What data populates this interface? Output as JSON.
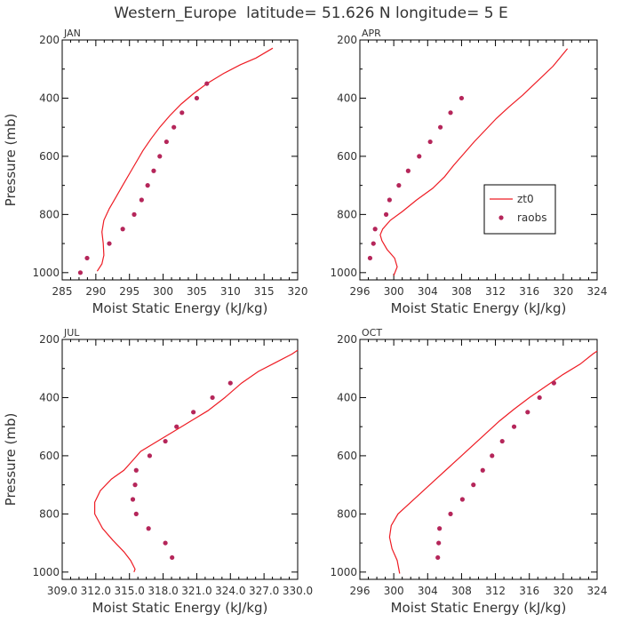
{
  "figure_title": "Western_Europe  latitude= 51.626 N longitude= 5 E",
  "colors": {
    "model": "#ee1c24",
    "obs": "#b5265a",
    "axis": "#000000",
    "text": "#333333"
  },
  "chart_data": [
    {
      "type": "line",
      "title": "JAN",
      "xlabel": "Moist Static Energy (kJ/kg)",
      "ylabel": "Pressure (mb)",
      "xlim": [
        285,
        320
      ],
      "ylim": [
        1025,
        200
      ],
      "x_ticks": [
        285,
        290,
        295,
        300,
        305,
        310,
        315,
        320
      ],
      "x_tick_labels": [
        "285",
        "290",
        "295",
        "300",
        "305",
        "310",
        "315",
        "320"
      ],
      "y_ticks": [
        200,
        400,
        600,
        800,
        1000
      ],
      "y_tick_labels": [
        "200",
        "400",
        "600",
        "800",
        "1000"
      ],
      "legend": null,
      "series": [
        {
          "name": "zt0",
          "style": "line",
          "points": [
            [
              290.2,
              995
            ],
            [
              290.9,
              970
            ],
            [
              291.2,
              940
            ],
            [
              291.1,
              900
            ],
            [
              290.9,
              860
            ],
            [
              291.2,
              820
            ],
            [
              292,
              780
            ],
            [
              293,
              740
            ],
            [
              294,
              700
            ],
            [
              295,
              660
            ],
            [
              296,
              620
            ],
            [
              297,
              580
            ],
            [
              298.2,
              540
            ],
            [
              299.5,
              500
            ],
            [
              301,
              460
            ],
            [
              302.7,
              420
            ],
            [
              304.5,
              385
            ],
            [
              306.5,
              350
            ],
            [
              309,
              315
            ],
            [
              311.5,
              285
            ],
            [
              313.8,
              262
            ],
            [
              316.3,
              228
            ]
          ]
        },
        {
          "name": "raobs",
          "style": "points",
          "points": [
            [
              287.7,
              1000
            ],
            [
              288.7,
              950
            ],
            [
              292,
              900
            ],
            [
              294,
              850
            ],
            [
              295.7,
              800
            ],
            [
              296.8,
              750
            ],
            [
              297.7,
              700
            ],
            [
              298.6,
              650
            ],
            [
              299.5,
              600
            ],
            [
              300.5,
              550
            ],
            [
              301.6,
              500
            ],
            [
              302.8,
              450
            ],
            [
              305,
              400
            ],
            [
              306.5,
              350
            ]
          ]
        }
      ]
    },
    {
      "type": "line",
      "title": "APR",
      "xlabel": "Moist Static Energy (kJ/kg)",
      "ylabel": "",
      "xlim": [
        296,
        324
      ],
      "ylim": [
        1025,
        200
      ],
      "x_ticks": [
        296,
        300,
        304,
        308,
        312,
        316,
        320,
        324
      ],
      "x_tick_labels": [
        "296",
        "300",
        "304",
        "308",
        "312",
        "316",
        "320",
        "324"
      ],
      "y_ticks": [
        200,
        400,
        600,
        800,
        1000
      ],
      "y_tick_labels": [
        "200",
        "400",
        "600",
        "800",
        "1000"
      ],
      "legend": {
        "location": "center-right",
        "entries": [
          "zt0",
          "raobs"
        ]
      },
      "series": [
        {
          "name": "zt0",
          "style": "line",
          "points": [
            [
              300,
              1010
            ],
            [
              300.4,
              980
            ],
            [
              300.1,
              950
            ],
            [
              299.2,
              920
            ],
            [
              298.6,
              890
            ],
            [
              298.4,
              870
            ],
            [
              298.7,
              850
            ],
            [
              299.6,
              820
            ],
            [
              301,
              790
            ],
            [
              302.7,
              750
            ],
            [
              304.6,
              710
            ],
            [
              306,
              670
            ],
            [
              307.1,
              630
            ],
            [
              308.3,
              590
            ],
            [
              309.5,
              550
            ],
            [
              310.8,
              510
            ],
            [
              312.1,
              470
            ],
            [
              313.6,
              430
            ],
            [
              315.2,
              390
            ],
            [
              317,
              340
            ],
            [
              318.8,
              290
            ],
            [
              320.5,
              230
            ]
          ]
        },
        {
          "name": "raobs",
          "style": "points",
          "points": [
            [
              297.2,
              950
            ],
            [
              297.6,
              900
            ],
            [
              297.8,
              850
            ],
            [
              299.1,
              800
            ],
            [
              299.5,
              750
            ],
            [
              300.6,
              700
            ],
            [
              301.7,
              650
            ],
            [
              303,
              600
            ],
            [
              304.3,
              550
            ],
            [
              305.5,
              500
            ],
            [
              306.7,
              450
            ],
            [
              308,
              400
            ]
          ]
        }
      ]
    },
    {
      "type": "line",
      "title": "JUL",
      "xlabel": "Moist Static Energy (kJ/kg)",
      "ylabel": "Pressure (mb)",
      "xlim": [
        309.0,
        330.0
      ],
      "ylim": [
        1025,
        200
      ],
      "x_ticks": [
        309.0,
        312.0,
        315.0,
        318.0,
        321.0,
        324.0,
        327.0,
        330.0
      ],
      "x_tick_labels": [
        "309.0",
        "312.0",
        "315.0",
        "318.0",
        "321.0",
        "324.0",
        "327.0",
        "330.0"
      ],
      "y_ticks": [
        200,
        400,
        600,
        800,
        1000
      ],
      "y_tick_labels": [
        "200",
        "400",
        "600",
        "800",
        "1000"
      ],
      "legend": null,
      "series": [
        {
          "name": "zt0",
          "style": "line",
          "points": [
            [
              315.4,
              1000
            ],
            [
              315.5,
              990
            ],
            [
              315.1,
              960
            ],
            [
              314.5,
              930
            ],
            [
              313.5,
              890
            ],
            [
              312.6,
              850
            ],
            [
              311.9,
              800
            ],
            [
              311.9,
              760
            ],
            [
              312.4,
              720
            ],
            [
              313.4,
              680
            ],
            [
              314.5,
              650
            ],
            [
              315.2,
              620
            ],
            [
              316,
              585
            ],
            [
              317.5,
              550
            ],
            [
              319,
              515
            ],
            [
              320.5,
              480
            ],
            [
              322,
              445
            ],
            [
              323.5,
              400
            ],
            [
              325,
              350
            ],
            [
              326.5,
              310
            ],
            [
              328,
              280
            ],
            [
              329.5,
              250
            ],
            [
              330,
              237
            ]
          ]
        },
        {
          "name": "raobs",
          "style": "points",
          "points": [
            [
              318.8,
              950
            ],
            [
              318.2,
              900
            ],
            [
              316.7,
              850
            ],
            [
              315.6,
              800
            ],
            [
              315.3,
              750
            ],
            [
              315.5,
              700
            ],
            [
              315.6,
              650
            ],
            [
              316.8,
              600
            ],
            [
              318.2,
              550
            ],
            [
              319.2,
              500
            ],
            [
              320.7,
              450
            ],
            [
              322.4,
              400
            ],
            [
              324,
              350
            ]
          ]
        }
      ]
    },
    {
      "type": "line",
      "title": "OCT",
      "xlabel": "Moist Static Energy (kJ/kg)",
      "ylabel": "",
      "xlim": [
        296,
        324
      ],
      "ylim": [
        1025,
        200
      ],
      "x_ticks": [
        296,
        300,
        304,
        308,
        312,
        316,
        320,
        324
      ],
      "x_tick_labels": [
        "296",
        "300",
        "304",
        "308",
        "312",
        "316",
        "320",
        "324"
      ],
      "y_ticks": [
        200,
        400,
        600,
        800,
        1000
      ],
      "y_tick_labels": [
        "200",
        "400",
        "600",
        "800",
        "1000"
      ],
      "legend": null,
      "series": [
        {
          "name": "zt0",
          "style": "line",
          "points": [
            [
              300.7,
              1005
            ],
            [
              300.4,
              960
            ],
            [
              299.8,
              920
            ],
            [
              299.5,
              880
            ],
            [
              299.7,
              840
            ],
            [
              300.5,
              800
            ],
            [
              302,
              760
            ],
            [
              303.5,
              720
            ],
            [
              305,
              680
            ],
            [
              306.5,
              640
            ],
            [
              308,
              600
            ],
            [
              309.5,
              560
            ],
            [
              311,
              520
            ],
            [
              312.5,
              480
            ],
            [
              314.2,
              440
            ],
            [
              316,
              400
            ],
            [
              318,
              360
            ],
            [
              320,
              320
            ],
            [
              322,
              285
            ],
            [
              323.5,
              250
            ],
            [
              324,
              240
            ]
          ]
        },
        {
          "name": "raobs",
          "style": "points",
          "points": [
            [
              305.2,
              950
            ],
            [
              305.3,
              900
            ],
            [
              305.4,
              850
            ],
            [
              306.7,
              800
            ],
            [
              308.1,
              750
            ],
            [
              309.4,
              700
            ],
            [
              310.5,
              650
            ],
            [
              311.6,
              600
            ],
            [
              312.8,
              550
            ],
            [
              314.2,
              500
            ],
            [
              315.8,
              450
            ],
            [
              317.2,
              400
            ],
            [
              318.9,
              350
            ]
          ]
        }
      ]
    }
  ]
}
